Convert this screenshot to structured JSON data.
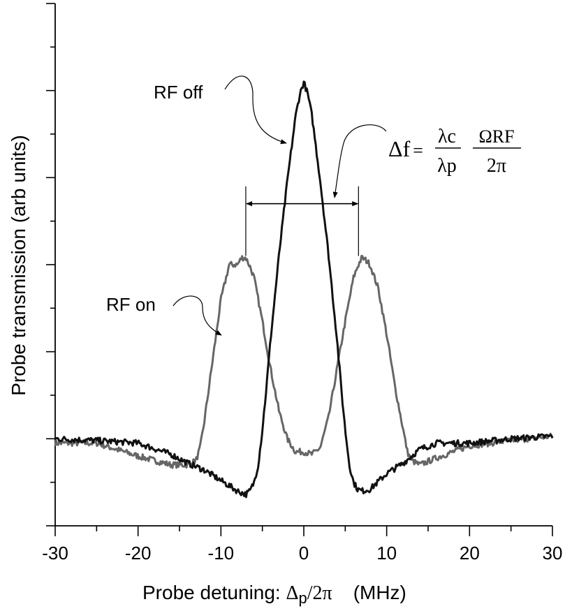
{
  "chart_data": {
    "type": "line",
    "xlabel": "Probe detuning: Δp/2π    (MHz)",
    "xlabel_parts": {
      "prefix": "Probe detuning: ",
      "delta": "Δ",
      "sub": "p",
      "suffix": "/2π",
      "units": "(MHz)"
    },
    "ylabel": "Probe transmission (arb units)",
    "xlim": [
      -30,
      30
    ],
    "ylim": [
      -1,
      5
    ],
    "xticks": [
      -30,
      -20,
      -10,
      0,
      10,
      20,
      30
    ],
    "xtick_labels": [
      "-30",
      "-20",
      "-10",
      "0",
      "10",
      "20",
      "30"
    ],
    "ytick_major": [
      -1,
      0,
      1,
      2,
      3,
      4,
      5
    ],
    "ytick_minor": [
      -0.5,
      0.5,
      1.5,
      2.5,
      3.5,
      4.5
    ],
    "grid": false,
    "series": [
      {
        "name": "RF off",
        "color": "#111111",
        "x": [
          -30,
          -25,
          -20,
          -16,
          -14,
          -12,
          -10,
          -8,
          -7,
          -6.5,
          -6,
          -5.5,
          -5,
          -4.5,
          -4,
          -3,
          -2,
          -1,
          -0.5,
          0,
          0.5,
          1,
          2,
          3,
          4,
          4.5,
          5,
          5.5,
          6,
          6.5,
          7,
          8,
          10,
          12,
          14,
          16,
          20,
          25,
          30
        ],
        "y": [
          0.0,
          -0.02,
          -0.05,
          -0.18,
          -0.28,
          -0.36,
          -0.48,
          -0.6,
          -0.64,
          -0.6,
          -0.5,
          -0.3,
          0.1,
          0.6,
          1.15,
          2.1,
          2.95,
          3.7,
          3.95,
          4.1,
          3.95,
          3.7,
          2.95,
          2.1,
          1.15,
          0.6,
          0.1,
          -0.3,
          -0.5,
          -0.58,
          -0.6,
          -0.58,
          -0.4,
          -0.28,
          -0.12,
          -0.05,
          -0.05,
          0.0,
          0.03
        ]
      },
      {
        "name": "RF on",
        "color": "#666666",
        "x": [
          -30,
          -25,
          -20,
          -16,
          -14,
          -13,
          -12.5,
          -12,
          -11,
          -10,
          -9,
          -8,
          -7.5,
          -7,
          -6.5,
          -6,
          -5,
          -4,
          -3,
          -2,
          -1,
          0,
          1,
          2,
          3,
          4,
          5,
          6,
          6.5,
          7,
          7.5,
          8,
          9,
          10,
          11,
          12,
          12.5,
          13,
          14,
          16,
          20,
          25,
          30
        ],
        "y": [
          -0.05,
          -0.05,
          -0.2,
          -0.3,
          -0.3,
          -0.25,
          -0.1,
          0.2,
          0.9,
          1.6,
          2.0,
          2.0,
          2.08,
          2.08,
          1.98,
          1.85,
          1.35,
          0.8,
          0.32,
          0.0,
          -0.15,
          -0.15,
          -0.18,
          -0.1,
          0.25,
          0.8,
          1.35,
          1.85,
          1.98,
          2.08,
          2.05,
          2.0,
          1.72,
          1.2,
          0.6,
          0.1,
          -0.15,
          -0.25,
          -0.3,
          -0.22,
          -0.08,
          -0.02,
          0.03
        ]
      }
    ],
    "annotations": {
      "rf_off_label": "RF off",
      "rf_on_label": "RF on",
      "formula": {
        "lhs": "Δf",
        "eq": "=",
        "num1": "λc",
        "den1": "λp",
        "num2": "ΩRF",
        "den2": "2π"
      },
      "splitting_arrow": {
        "x_from": -7,
        "x_to": 6.6,
        "y": 2.7,
        "marker_top": 2.9,
        "marker_bottom": 2.1
      }
    }
  }
}
